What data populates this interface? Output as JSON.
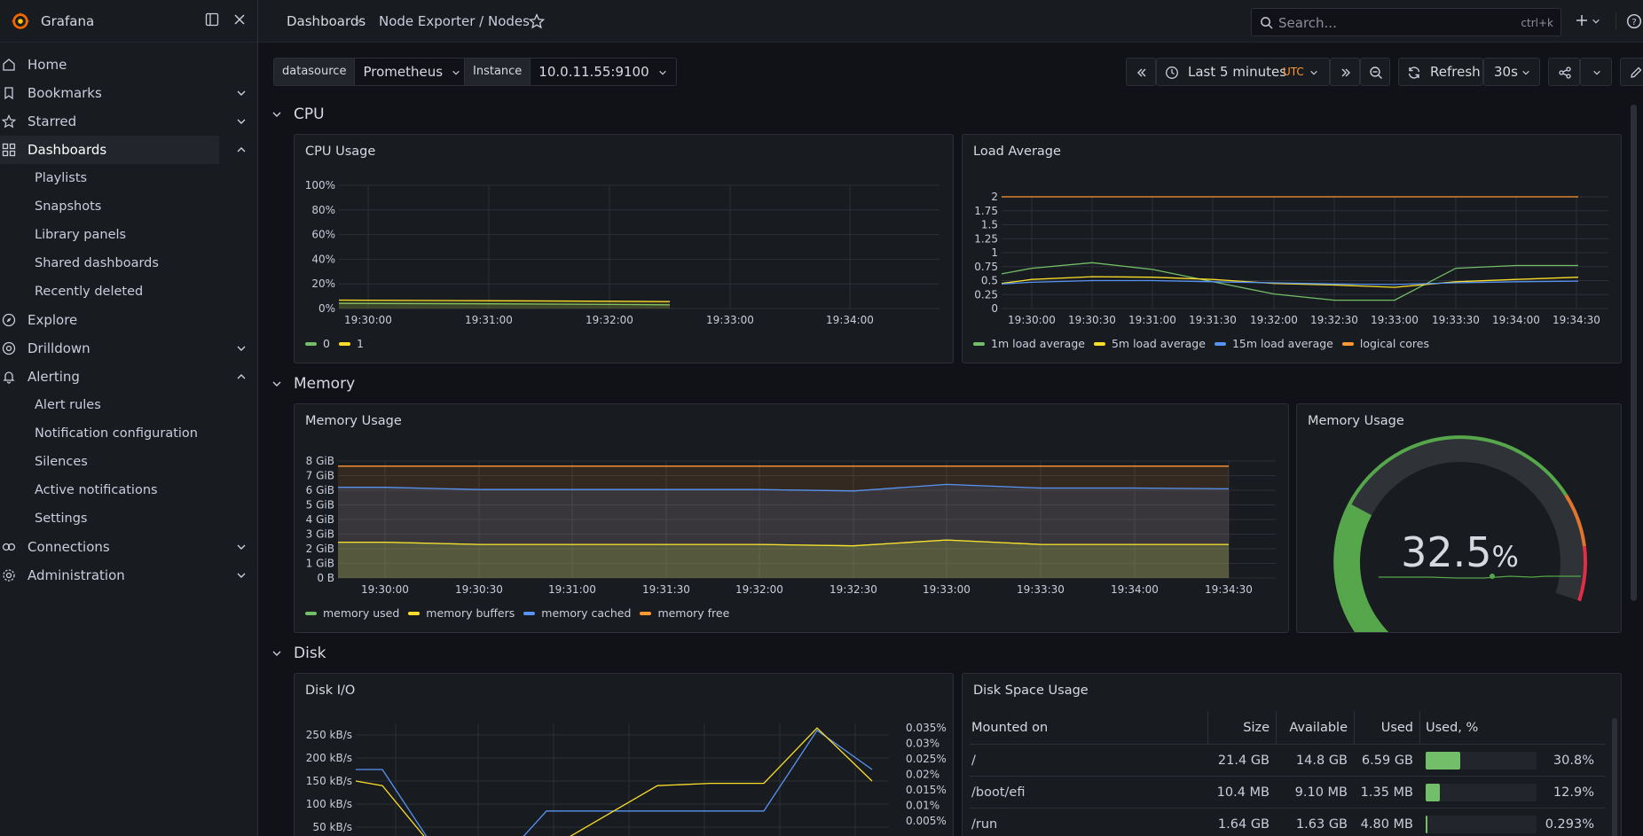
{
  "app": {
    "name": "Grafana"
  },
  "sidebar": {
    "items": [
      {
        "label": "Home",
        "icon": "home-icon"
      },
      {
        "label": "Bookmarks",
        "icon": "bookmark-icon"
      },
      {
        "label": "Starred",
        "icon": "star-icon"
      },
      {
        "label": "Dashboards",
        "icon": "apps-icon"
      },
      {
        "label": "Explore",
        "icon": "compass-icon"
      },
      {
        "label": "Drilldown",
        "icon": "drilldown-icon"
      },
      {
        "label": "Alerting",
        "icon": "bell-icon"
      },
      {
        "label": "Connections",
        "icon": "connections-icon"
      },
      {
        "label": "Administration",
        "icon": "cog-icon"
      }
    ],
    "dashboards_children": [
      "Playlists",
      "Snapshots",
      "Library panels",
      "Shared dashboards",
      "Recently deleted"
    ],
    "alerting_children": [
      "Alert rules",
      "Notification configuration",
      "Silences",
      "Active notifications",
      "Settings"
    ]
  },
  "header": {
    "breadcrumb": [
      "Dashboards",
      "Node Exporter / Nodes"
    ],
    "breadcrumb_sep": "›",
    "search_placeholder": "Search...",
    "search_shortcut": "ctrl+k"
  },
  "controls": {
    "datasource_label": "datasource",
    "datasource_value": "Prometheus",
    "instance_label": "Instance",
    "instance_value": "10.0.11.55:9100",
    "time_range": "Last 5 minutes",
    "timezone": "UTC",
    "refresh_label": "Refresh",
    "refresh_interval": "30s"
  },
  "sections": {
    "cpu": "CPU",
    "memory": "Memory",
    "disk": "Disk"
  },
  "colors": {
    "green": "#73bf69",
    "yellow": "#fade2a",
    "blue": "#5794f2",
    "orange": "#ff9830",
    "accent_orange": "#ff780a"
  },
  "panels": {
    "cpu_usage": {
      "title": "CPU Usage",
      "chart_data": {
        "type": "line",
        "x": [
          "19:30:00",
          "19:31:00",
          "19:32:00",
          "19:32:45"
        ],
        "x_ticks": [
          "19:30:00",
          "19:31:00",
          "19:32:00",
          "19:33:00",
          "19:34:00"
        ],
        "y_ticks": [
          "100%",
          "80%",
          "60%",
          "40%",
          "20%",
          "0%"
        ],
        "ylim": [
          0,
          100
        ],
        "series": [
          {
            "name": "0",
            "color": "#73bf69",
            "values": [
              4.2,
              3.8,
              3.3,
              3.0
            ]
          },
          {
            "name": "1",
            "color": "#fade2a",
            "values": [
              6.8,
              6.3,
              5.9,
              5.6
            ]
          }
        ]
      }
    },
    "load_average": {
      "title": "Load Average",
      "chart_data": {
        "type": "line",
        "x": [
          "19:29:45",
          "19:30:00",
          "19:30:30",
          "19:31:00",
          "19:31:30",
          "19:32:00",
          "19:32:30",
          "19:33:00",
          "19:33:30",
          "19:34:00",
          "19:34:30"
        ],
        "x_ticks": [
          "19:30:00",
          "19:30:30",
          "19:31:00",
          "19:31:30",
          "19:32:00",
          "19:32:30",
          "19:33:00",
          "19:33:30",
          "19:34:00",
          "19:34:30"
        ],
        "y_ticks": [
          "2",
          "1.75",
          "1.5",
          "1.25",
          "1",
          "0.75",
          "0.5",
          "0.25",
          "0"
        ],
        "ylim": [
          0,
          2
        ],
        "series": [
          {
            "name": "1m load average",
            "color": "#73bf69",
            "values": [
              0.62,
              0.72,
              0.82,
              0.7,
              0.48,
              0.26,
              0.15,
              0.15,
              0.72,
              0.77,
              0.77
            ]
          },
          {
            "name": "5m load average",
            "color": "#fade2a",
            "values": [
              0.45,
              0.52,
              0.57,
              0.56,
              0.52,
              0.45,
              0.42,
              0.38,
              0.48,
              0.52,
              0.56
            ]
          },
          {
            "name": "15m load average",
            "color": "#5794f2",
            "values": [
              0.44,
              0.47,
              0.5,
              0.5,
              0.48,
              0.46,
              0.44,
              0.43,
              0.46,
              0.48,
              0.49
            ]
          },
          {
            "name": "logical cores",
            "color": "#ff9830",
            "values": [
              2,
              2,
              2,
              2,
              2,
              2,
              2,
              2,
              2,
              2,
              2
            ]
          }
        ]
      }
    },
    "memory_usage_ts": {
      "title": "Memory Usage",
      "chart_data": {
        "type": "area",
        "x": [
          "19:29:45",
          "19:30:00",
          "19:30:30",
          "19:31:00",
          "19:31:30",
          "19:32:00",
          "19:32:30",
          "19:33:00",
          "19:33:30",
          "19:34:00",
          "19:34:30"
        ],
        "x_ticks": [
          "19:30:00",
          "19:30:30",
          "19:31:00",
          "19:31:30",
          "19:32:00",
          "19:32:30",
          "19:33:00",
          "19:33:30",
          "19:34:00",
          "19:34:30"
        ],
        "y_ticks": [
          "8 GiB",
          "7 GiB",
          "6 GiB",
          "5 GiB",
          "4 GiB",
          "3 GiB",
          "2 GiB",
          "1 GiB",
          "0 B"
        ],
        "ylim": [
          0,
          8
        ],
        "series": [
          {
            "name": "memory used",
            "color": "#73bf69",
            "values": [
              2.45,
              2.45,
              2.3,
              2.3,
              2.3,
              2.3,
              2.2,
              2.6,
              2.3,
              2.3,
              2.3
            ]
          },
          {
            "name": "memory buffers",
            "color": "#fade2a",
            "values": [
              2.45,
              2.45,
              2.3,
              2.3,
              2.3,
              2.3,
              2.2,
              2.6,
              2.3,
              2.3,
              2.3
            ]
          },
          {
            "name": "memory cached",
            "color": "#5794f2",
            "values": [
              6.2,
              6.2,
              6.05,
              6.05,
              6.05,
              6.05,
              5.95,
              6.4,
              6.15,
              6.15,
              6.1
            ]
          },
          {
            "name": "memory free",
            "color": "#ff9830",
            "values": [
              7.65,
              7.65,
              7.65,
              7.65,
              7.65,
              7.65,
              7.65,
              7.65,
              7.65,
              7.65,
              7.65
            ]
          }
        ]
      }
    },
    "memory_gauge": {
      "title": "Memory Usage",
      "value": "32.5",
      "unit": "%",
      "chart_data": {
        "type": "gauge",
        "value": 32.5,
        "min": 0,
        "max": 100
      }
    },
    "disk_io": {
      "title": "Disk I/O",
      "chart_data": {
        "type": "line",
        "x": [
          "19:29:45",
          "19:30:00",
          "19:30:30",
          "19:31:00",
          "19:31:30",
          "19:32:00",
          "19:32:30",
          "19:33:00",
          "19:33:30",
          "19:34:00",
          "19:34:30"
        ],
        "y_ticks": [
          "250 kB/s",
          "200 kB/s",
          "150 kB/s",
          "100 kB/s",
          "50 kB/s"
        ],
        "y2_ticks": [
          "0.035%",
          "0.03%",
          "0.025%",
          "0.02%",
          "0.015%",
          "0.01%",
          "0.005%"
        ],
        "ylim": [
          0,
          275
        ],
        "series": [
          {
            "color": "#5794f2",
            "values": [
              175,
              175,
              0,
              0,
              0,
              85,
              85,
              85,
              85,
              260,
              175
            ]
          },
          {
            "color": "#fade2a",
            "values": [
              150,
              140,
              0,
              0,
              0,
              0,
              140,
              145,
              145,
              265,
              150
            ]
          }
        ]
      }
    },
    "disk_space": {
      "title": "Disk Space Usage",
      "columns": [
        "Mounted on",
        "Size",
        "Available",
        "Used",
        "Used, %"
      ],
      "rows": [
        {
          "mount": "/",
          "size": "21.4 GB",
          "available": "14.8 GB",
          "used": "6.59 GB",
          "used_pct": "30.8%",
          "fraction": 0.308
        },
        {
          "mount": "/boot/efi",
          "size": "10.4 MB",
          "available": "9.10 MB",
          "used": "1.35 MB",
          "used_pct": "12.9%",
          "fraction": 0.129
        },
        {
          "mount": "/run",
          "size": "1.64 GB",
          "available": "1.63 GB",
          "used": "4.80 MB",
          "used_pct": "0.293%",
          "fraction": 0.00293
        }
      ]
    }
  }
}
